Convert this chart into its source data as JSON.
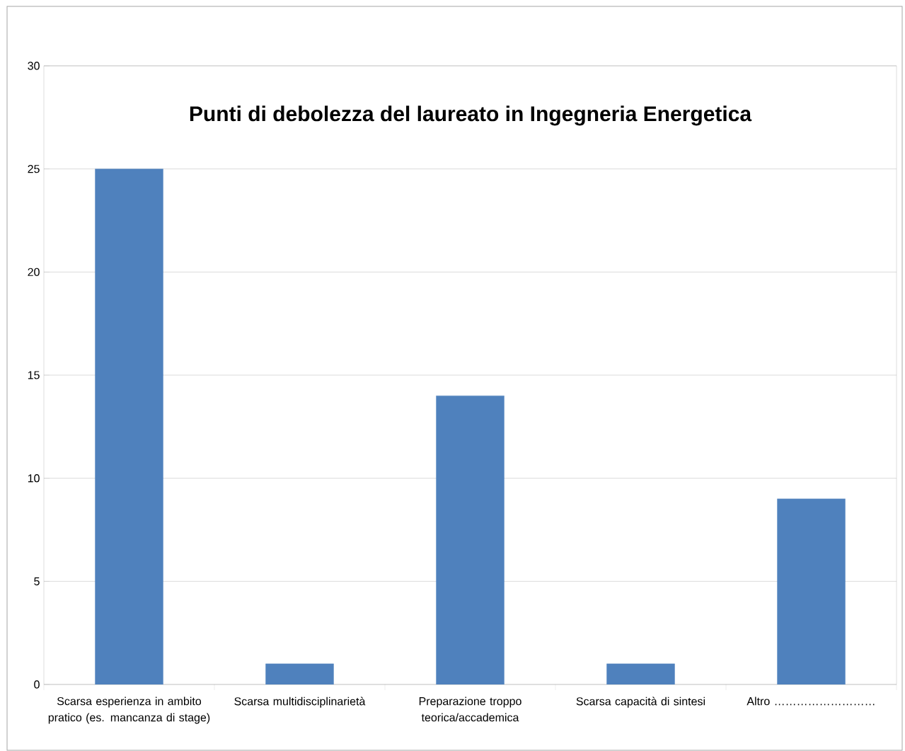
{
  "chart_data": {
    "type": "bar",
    "title": "Punti di debolezza del laureato in Ingegneria Energetica",
    "categories": [
      "Scarsa esperienza in ambito pratico (es. mancanza di stage)",
      "Scarsa multidisciplinarietà",
      "Preparazione troppo teorica/accademica",
      "Scarsa capacità di sintesi",
      "Altro ………………………"
    ],
    "values": [
      25,
      1,
      14,
      1,
      9
    ],
    "color": "#4f81bd",
    "ylim": [
      0,
      30
    ],
    "yticks": [
      0,
      5,
      10,
      15,
      20,
      25,
      30
    ],
    "grid": "y"
  }
}
